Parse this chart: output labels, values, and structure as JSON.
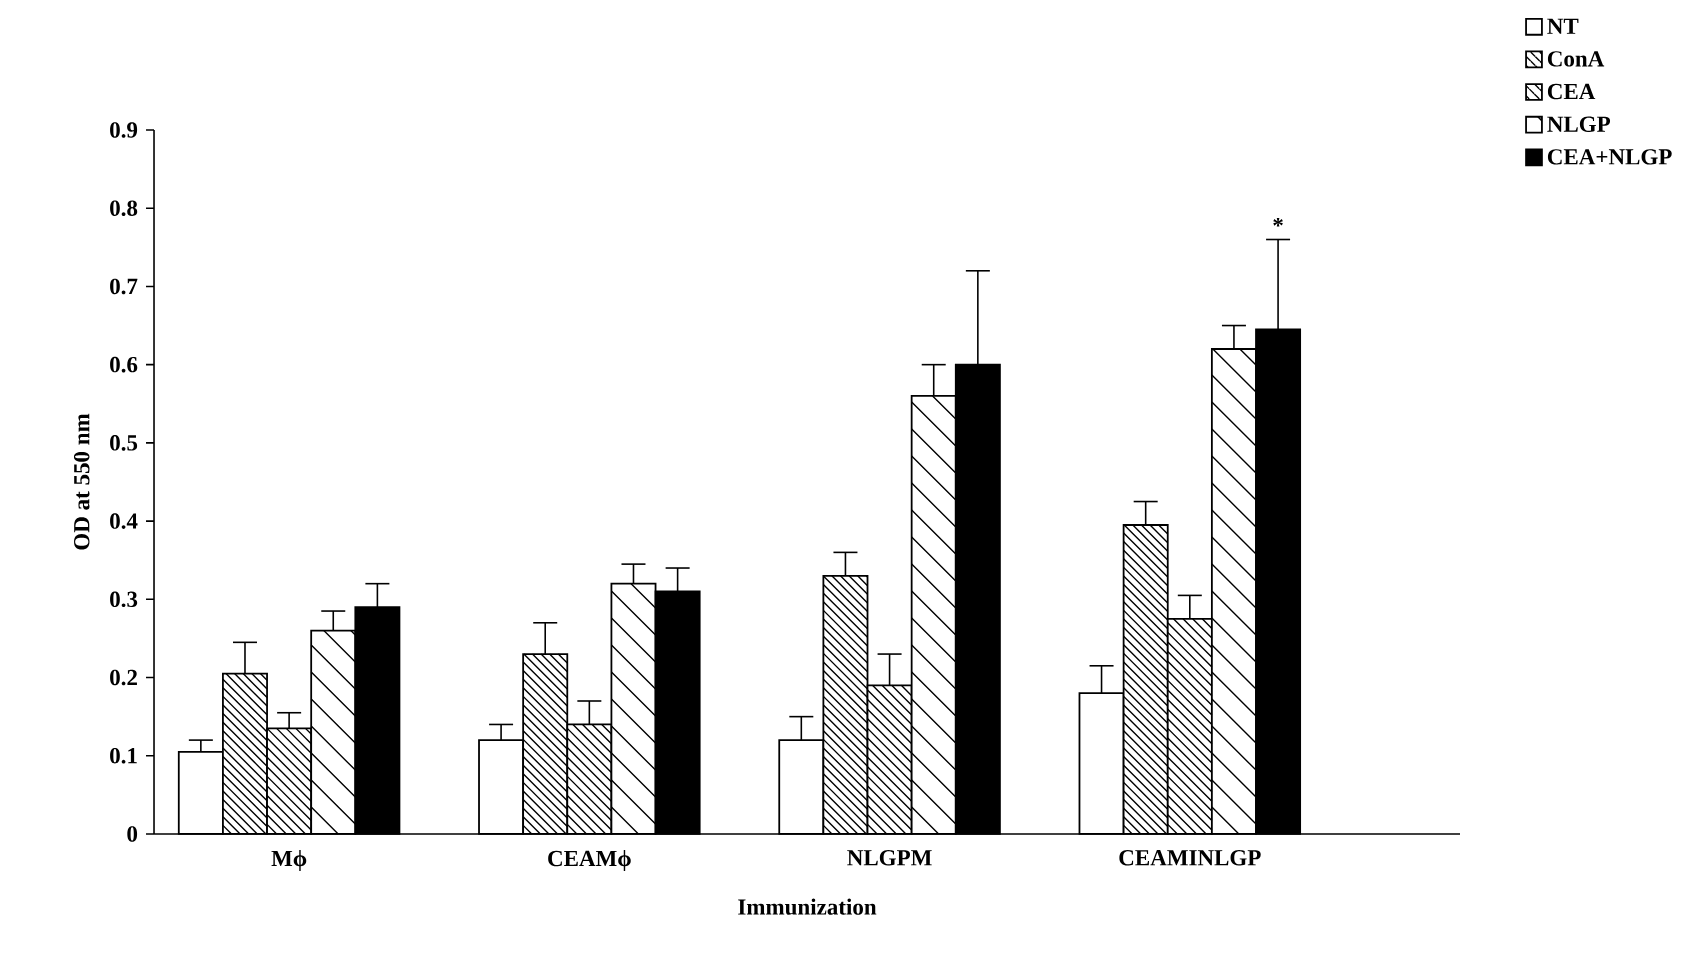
{
  "chart_data": {
    "type": "bar",
    "xlabel": "Immunization",
    "ylabel": "OD at 550 nm",
    "categories": [
      "Mϕ",
      "CEAMϕ",
      "NLGPM",
      "CEAMINLGP"
    ],
    "series": [
      {
        "name": "NT",
        "color": "#ffffff",
        "values": [
          0.105,
          0.12,
          0.12,
          0.18
        ],
        "errors": [
          [
            0.105,
            0.12
          ],
          [
            0.12,
            0.14
          ],
          [
            0.12,
            0.15
          ],
          [
            0.18,
            0.215
          ]
        ]
      },
      {
        "name": "ConA",
        "color": "#ffffff",
        "values": [
          0.205,
          0.23,
          0.33,
          0.395
        ],
        "errors": [
          [
            0.205,
            0.245
          ],
          [
            0.23,
            0.27
          ],
          [
            0.33,
            0.36
          ],
          [
            0.395,
            0.425
          ]
        ]
      },
      {
        "name": "CEA",
        "color": "#ffffff",
        "values": [
          0.135,
          0.14,
          0.19,
          0.275
        ],
        "errors": [
          [
            0.135,
            0.155
          ],
          [
            0.14,
            0.17
          ],
          [
            0.19,
            0.23
          ],
          [
            0.275,
            0.305
          ]
        ]
      },
      {
        "name": "NLGP",
        "color": "#ffffff",
        "values": [
          0.26,
          0.32,
          0.56,
          0.62
        ],
        "errors": [
          [
            0.26,
            0.285
          ],
          [
            0.32,
            0.345
          ],
          [
            0.56,
            0.6
          ],
          [
            0.62,
            0.65
          ]
        ]
      },
      {
        "name": "CEA+NLGP",
        "color": "#000000",
        "values": [
          0.29,
          0.31,
          0.6,
          0.645
        ],
        "errors": [
          [
            0.29,
            0.32
          ],
          [
            0.31,
            0.34
          ],
          [
            0.6,
            0.72
          ],
          [
            0.645,
            0.76
          ]
        ]
      }
    ],
    "annotations": [
      "*"
    ],
    "ylim": [
      0,
      0.9
    ],
    "yticks": [
      0,
      0.1,
      0.2,
      0.3,
      0.4,
      0.5,
      0.6,
      0.7,
      0.8,
      0.9
    ],
    "grid": false,
    "legend": "top right"
  }
}
